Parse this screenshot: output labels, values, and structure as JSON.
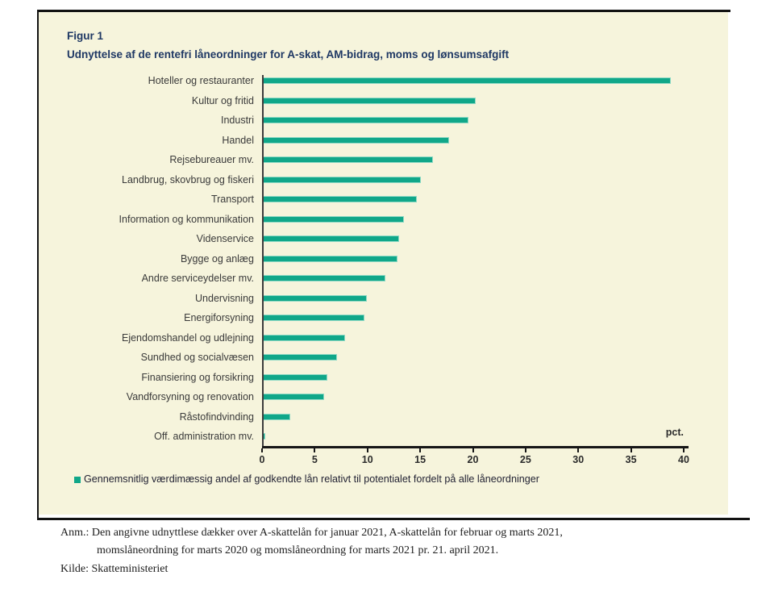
{
  "figure": {
    "label": "Figur 1",
    "title": "Udnyttelse af de rentefri låneordninger for A-skat, AM-bidrag, moms og lønsumsafgift"
  },
  "chart_data": {
    "type": "bar",
    "orientation": "horizontal",
    "title": "Udnyttelse af de rentefri låneordninger for A-skat, AM-bidrag, moms og lønsumsafgift",
    "unit_label": "pct.",
    "categories": [
      "Hoteller og restauranter",
      "Kultur og fritid",
      "Industri",
      "Handel",
      "Rejsebureauer mv.",
      "Landbrug, skovbrug og fiskeri",
      "Transport",
      "Information og kommunikation",
      "Videnservice",
      "Bygge og anlæg",
      "Andre serviceydelser mv.",
      "Undervisning",
      "Energiforsyning",
      "Ejendomshandel og udlejning",
      "Sundhed og socialvæsen",
      "Finansiering og forsikring",
      "Vandforsyning og renovation",
      "Råstofindvinding",
      "Off. administration mv."
    ],
    "values": [
      38.7,
      20.2,
      19.5,
      17.7,
      16.1,
      15.0,
      14.6,
      13.4,
      12.9,
      12.8,
      11.6,
      9.9,
      9.6,
      7.8,
      7.0,
      6.1,
      5.8,
      2.6,
      0.2
    ],
    "xlim": [
      0,
      40
    ],
    "xticks": [
      0,
      5,
      10,
      15,
      20,
      25,
      30,
      35,
      40
    ],
    "legend": "Gennemsnitlig værdimæssig andel af godkendte lån relativt til potentialet fordelt på alle låneordninger",
    "legend_position": "bottom",
    "grid": false
  },
  "colors": {
    "bar": "#10a789",
    "panel_background": "#f6f4dc",
    "title": "#1f3864"
  },
  "footnote": {
    "line1": "Anm.: Den angivne udnyttlese dækker over A-skattelån for januar 2021, A-skattelån for februar og marts 2021,",
    "line2": "momslåneordning for marts 2020 og momslåneordning for marts 2021 pr. 21. april 2021.",
    "source": "Kilde: Skatteministeriet"
  }
}
